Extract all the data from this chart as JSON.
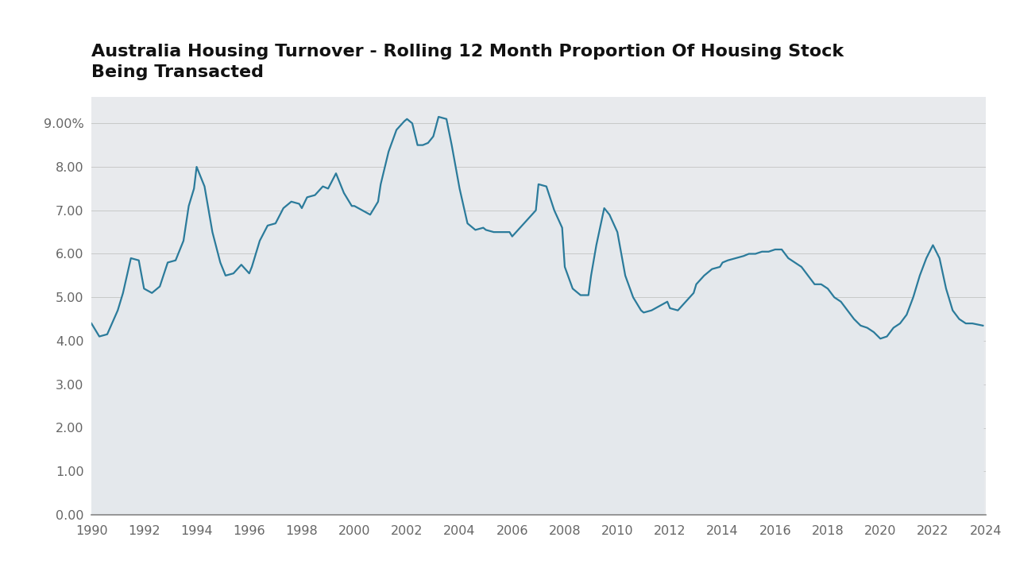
{
  "title": "Australia Housing Turnover - Rolling 12 Month Proportion Of Housing Stock\nBeing Transacted",
  "line_color": "#2b7b9b",
  "fill_color": "#e4e8ec",
  "plot_bg_color": "#e8eaed",
  "fig_background": "#ffffff",
  "ylim": [
    0,
    9.6
  ],
  "yticks": [
    0.0,
    1.0,
    2.0,
    3.0,
    4.0,
    5.0,
    6.0,
    7.0,
    8.0,
    9.0
  ],
  "ytick_labels": [
    "0.00",
    "1.00",
    "2.00",
    "3.00",
    "4.00",
    "5.00",
    "6.00",
    "7.00",
    "8.00",
    "9.00%"
  ],
  "xtick_years": [
    1990,
    1992,
    1994,
    1996,
    1998,
    2000,
    2002,
    2004,
    2006,
    2008,
    2010,
    2012,
    2014,
    2016,
    2018,
    2020,
    2022,
    2024
  ],
  "data": [
    [
      1990.0,
      4.4
    ],
    [
      1990.3,
      4.1
    ],
    [
      1990.6,
      4.15
    ],
    [
      1991.0,
      4.7
    ],
    [
      1991.2,
      5.1
    ],
    [
      1991.5,
      5.9
    ],
    [
      1991.8,
      5.85
    ],
    [
      1992.0,
      5.2
    ],
    [
      1992.3,
      5.1
    ],
    [
      1992.6,
      5.25
    ],
    [
      1992.9,
      5.8
    ],
    [
      1993.2,
      5.85
    ],
    [
      1993.5,
      6.3
    ],
    [
      1993.7,
      7.1
    ],
    [
      1993.9,
      7.5
    ],
    [
      1994.0,
      8.0
    ],
    [
      1994.3,
      7.55
    ],
    [
      1994.6,
      6.5
    ],
    [
      1994.9,
      5.8
    ],
    [
      1995.1,
      5.5
    ],
    [
      1995.4,
      5.55
    ],
    [
      1995.7,
      5.75
    ],
    [
      1996.0,
      5.55
    ],
    [
      1996.1,
      5.7
    ],
    [
      1996.4,
      6.3
    ],
    [
      1996.7,
      6.65
    ],
    [
      1997.0,
      6.7
    ],
    [
      1997.3,
      7.05
    ],
    [
      1997.6,
      7.2
    ],
    [
      1997.9,
      7.15
    ],
    [
      1998.0,
      7.05
    ],
    [
      1998.2,
      7.3
    ],
    [
      1998.5,
      7.35
    ],
    [
      1998.8,
      7.55
    ],
    [
      1999.0,
      7.5
    ],
    [
      1999.3,
      7.85
    ],
    [
      1999.6,
      7.4
    ],
    [
      1999.9,
      7.1
    ],
    [
      2000.0,
      7.1
    ],
    [
      2000.3,
      7.0
    ],
    [
      2000.6,
      6.9
    ],
    [
      2000.9,
      7.2
    ],
    [
      2001.0,
      7.6
    ],
    [
      2001.3,
      8.35
    ],
    [
      2001.6,
      8.85
    ],
    [
      2001.9,
      9.05
    ],
    [
      2002.0,
      9.1
    ],
    [
      2002.2,
      9.0
    ],
    [
      2002.4,
      8.5
    ],
    [
      2002.6,
      8.5
    ],
    [
      2002.8,
      8.55
    ],
    [
      2003.0,
      8.7
    ],
    [
      2003.2,
      9.15
    ],
    [
      2003.5,
      9.1
    ],
    [
      2003.7,
      8.5
    ],
    [
      2004.0,
      7.5
    ],
    [
      2004.3,
      6.7
    ],
    [
      2004.6,
      6.55
    ],
    [
      2004.9,
      6.6
    ],
    [
      2005.0,
      6.55
    ],
    [
      2005.3,
      6.5
    ],
    [
      2005.6,
      6.5
    ],
    [
      2005.9,
      6.5
    ],
    [
      2006.0,
      6.4
    ],
    [
      2006.3,
      6.6
    ],
    [
      2006.6,
      6.8
    ],
    [
      2006.9,
      7.0
    ],
    [
      2007.0,
      7.6
    ],
    [
      2007.3,
      7.55
    ],
    [
      2007.6,
      7.0
    ],
    [
      2007.9,
      6.6
    ],
    [
      2008.0,
      5.7
    ],
    [
      2008.3,
      5.2
    ],
    [
      2008.6,
      5.05
    ],
    [
      2008.9,
      5.05
    ],
    [
      2009.0,
      5.5
    ],
    [
      2009.2,
      6.2
    ],
    [
      2009.5,
      7.05
    ],
    [
      2009.7,
      6.9
    ],
    [
      2010.0,
      6.5
    ],
    [
      2010.3,
      5.5
    ],
    [
      2010.6,
      5.0
    ],
    [
      2010.9,
      4.7
    ],
    [
      2011.0,
      4.65
    ],
    [
      2011.3,
      4.7
    ],
    [
      2011.6,
      4.8
    ],
    [
      2011.9,
      4.9
    ],
    [
      2012.0,
      4.75
    ],
    [
      2012.3,
      4.7
    ],
    [
      2012.6,
      4.9
    ],
    [
      2012.9,
      5.1
    ],
    [
      2013.0,
      5.3
    ],
    [
      2013.3,
      5.5
    ],
    [
      2013.6,
      5.65
    ],
    [
      2013.9,
      5.7
    ],
    [
      2014.0,
      5.8
    ],
    [
      2014.2,
      5.85
    ],
    [
      2014.5,
      5.9
    ],
    [
      2014.8,
      5.95
    ],
    [
      2015.0,
      6.0
    ],
    [
      2015.25,
      6.0
    ],
    [
      2015.5,
      6.05
    ],
    [
      2015.75,
      6.05
    ],
    [
      2016.0,
      6.1
    ],
    [
      2016.25,
      6.1
    ],
    [
      2016.5,
      5.9
    ],
    [
      2016.75,
      5.8
    ],
    [
      2017.0,
      5.7
    ],
    [
      2017.25,
      5.5
    ],
    [
      2017.5,
      5.3
    ],
    [
      2017.75,
      5.3
    ],
    [
      2018.0,
      5.2
    ],
    [
      2018.25,
      5.0
    ],
    [
      2018.5,
      4.9
    ],
    [
      2018.75,
      4.7
    ],
    [
      2019.0,
      4.5
    ],
    [
      2019.25,
      4.35
    ],
    [
      2019.5,
      4.3
    ],
    [
      2019.75,
      4.2
    ],
    [
      2020.0,
      4.05
    ],
    [
      2020.25,
      4.1
    ],
    [
      2020.5,
      4.3
    ],
    [
      2020.75,
      4.4
    ],
    [
      2021.0,
      4.6
    ],
    [
      2021.25,
      5.0
    ],
    [
      2021.5,
      5.5
    ],
    [
      2021.75,
      5.9
    ],
    [
      2022.0,
      6.2
    ],
    [
      2022.25,
      5.9
    ],
    [
      2022.5,
      5.2
    ],
    [
      2022.75,
      4.7
    ],
    [
      2023.0,
      4.5
    ],
    [
      2023.25,
      4.4
    ],
    [
      2023.5,
      4.4
    ],
    [
      2023.9,
      4.35
    ]
  ]
}
